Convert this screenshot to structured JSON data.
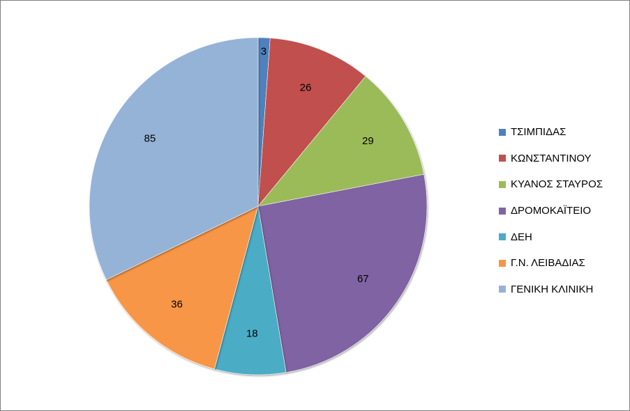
{
  "chart_data": {
    "type": "pie",
    "title": "",
    "data_labels_shown": true,
    "start_angle_deg": 0,
    "direction": "clockwise",
    "legend_position": "right",
    "slices": [
      {
        "label": "ΤΣΙΜΠΙΔΑΣ",
        "value": 3,
        "color": "#4F81BD"
      },
      {
        "label": "ΚΩΝΣΤΑΝΤΙΝΟΥ",
        "value": 26,
        "color": "#C0504D"
      },
      {
        "label": "ΚΥΑΝΟΣ ΣΤΑΥΡΟΣ",
        "value": 29,
        "color": "#9BBB59"
      },
      {
        "label": "ΔΡΟΜΟΚΑΪΤΕΙΟ",
        "value": 67,
        "color": "#8064A2"
      },
      {
        "label": "ΔΕΗ",
        "value": 18,
        "color": "#4BACC6"
      },
      {
        "label": "Γ.Ν. ΛΕΙΒΑΔΙΑΣ",
        "value": 36,
        "color": "#F79646"
      },
      {
        "label": "ΓΕΝΙΚΗ ΚΛΙΝΙΚΗ",
        "value": 85,
        "color": "#95B3D7"
      }
    ]
  }
}
